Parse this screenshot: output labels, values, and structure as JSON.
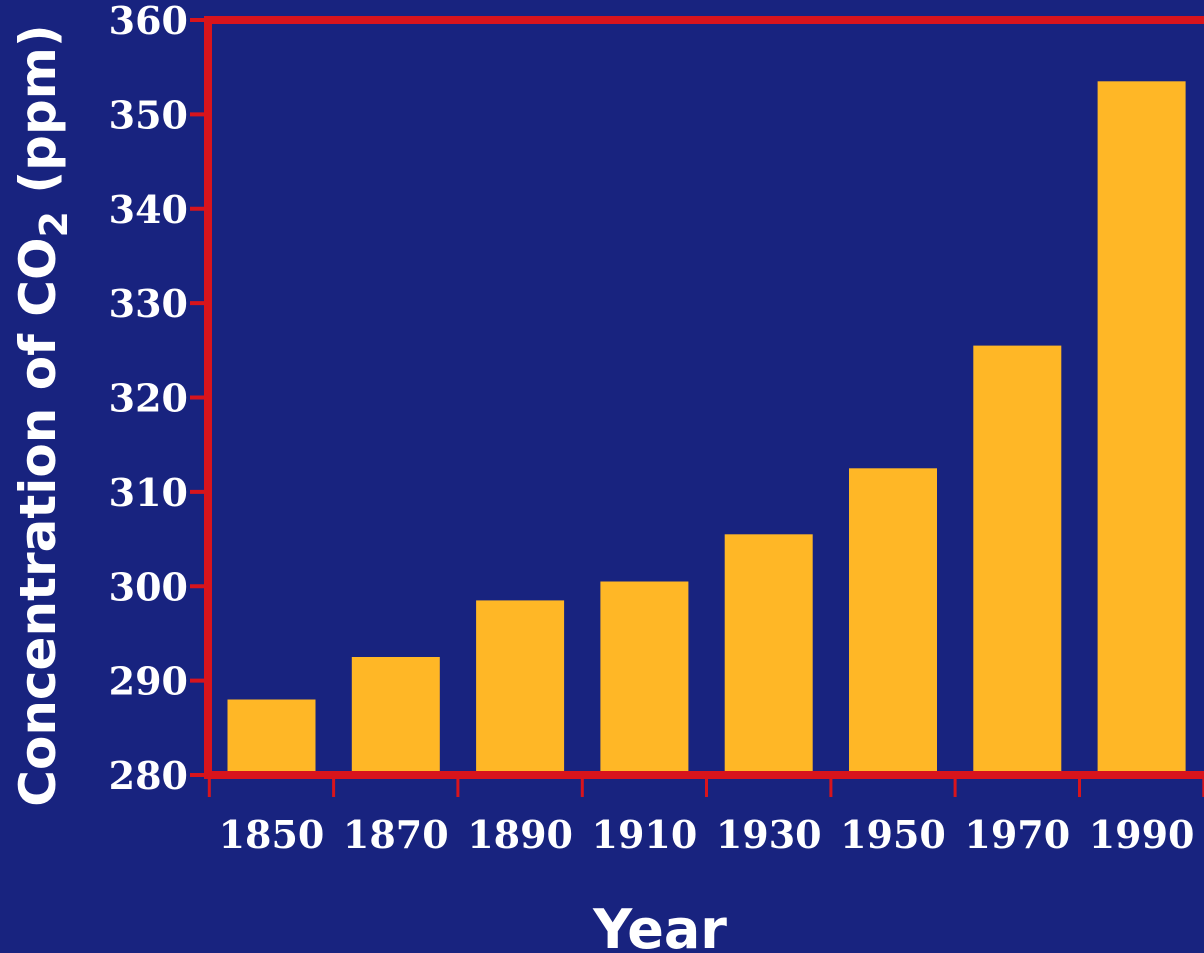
{
  "chart_data": {
    "type": "bar",
    "categories": [
      "1850",
      "1870",
      "1890",
      "1910",
      "1930",
      "1950",
      "1970",
      "1990"
    ],
    "values": [
      288,
      292.5,
      298.5,
      300.5,
      305.5,
      312.5,
      325.5,
      353.5
    ],
    "xlabel": "Year",
    "ylabel_main": "Concentration of CO",
    "ylabel_sub": "2",
    "ylabel_unit": " (ppm)",
    "ylim": [
      280,
      360
    ],
    "yticks": [
      "280",
      "290",
      "300",
      "310",
      "320",
      "330",
      "340",
      "350",
      "360"
    ],
    "grid": false,
    "colors": {
      "background": "#18237f",
      "bar": "#ffb726",
      "frame": "#d8141c",
      "text": "#ffffff"
    }
  }
}
